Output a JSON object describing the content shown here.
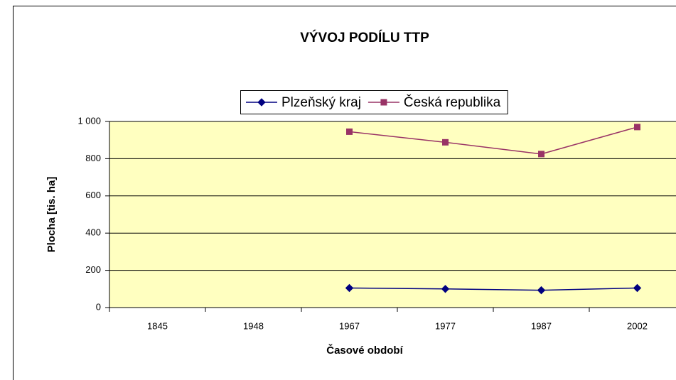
{
  "chart_data": {
    "type": "line",
    "title": "VÝVOJ PODÍLU TTP",
    "x_label": "Časové období",
    "y_label": "Plocha [tis. ha]",
    "categories": [
      "1845",
      "1948",
      "1967",
      "1977",
      "1987",
      "2002"
    ],
    "series": [
      {
        "name": "Plzeňský kraj",
        "color": "#000080",
        "marker": "diamond",
        "values": [
          null,
          null,
          105,
          100,
          93,
          105
        ]
      },
      {
        "name": "Česká republika",
        "color": "#993366",
        "marker": "square",
        "values": [
          null,
          null,
          945,
          888,
          825,
          970
        ]
      }
    ],
    "ylim": [
      0,
      1000
    ],
    "yticks": [
      0,
      200,
      400,
      600,
      800,
      {
        "value": 1000,
        "label": "1 000"
      }
    ],
    "grid": true,
    "legend": "top",
    "plot_background": "#ffffc0"
  }
}
